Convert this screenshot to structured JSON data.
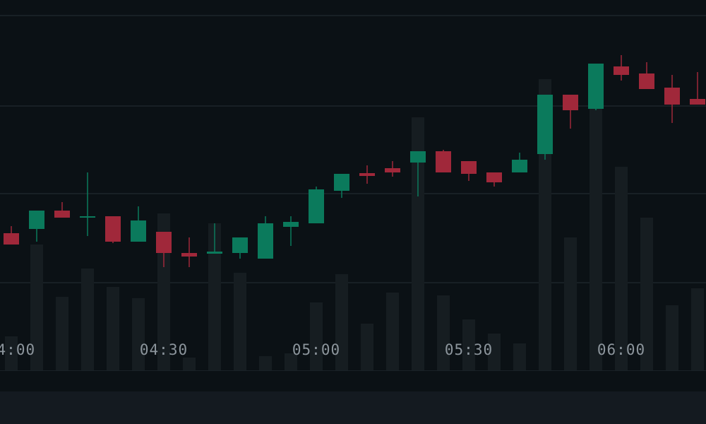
{
  "chart_data": {
    "type": "candlestick",
    "categories": [
      "04:00",
      null,
      null,
      null,
      null,
      null,
      "04:30",
      null,
      null,
      null,
      null,
      null,
      "05:00",
      null,
      null,
      null,
      null,
      null,
      "05:30",
      null,
      null,
      null,
      null,
      null,
      "06:00",
      null,
      null,
      null
    ],
    "open": [
      270,
      276,
      302,
      293,
      294,
      258,
      272,
      242,
      241,
      242,
      234,
      279,
      284,
      330,
      355,
      362,
      370,
      386,
      372,
      356,
      356,
      382,
      466,
      446,
      506,
      496,
      476,
      460
    ],
    "high": [
      280,
      302,
      314,
      356,
      294,
      308,
      272,
      264,
      284,
      264,
      294,
      294,
      336,
      354,
      366,
      372,
      386,
      388,
      372,
      356,
      384,
      466,
      466,
      510,
      522,
      512,
      494,
      498
    ],
    "low": [
      254,
      258,
      292,
      266,
      256,
      258,
      222,
      222,
      241,
      234,
      234,
      252,
      284,
      320,
      340,
      350,
      322,
      356,
      344,
      336,
      356,
      374,
      418,
      444,
      486,
      474,
      426,
      452
    ],
    "close": [
      254,
      302,
      292,
      294,
      258,
      288,
      242,
      237,
      244,
      264,
      284,
      286,
      332,
      354,
      351,
      356,
      386,
      356,
      354,
      342,
      374,
      466,
      444,
      510,
      494,
      474,
      452,
      452
    ],
    "volume": [
      48,
      178,
      104,
      144,
      118,
      102,
      222,
      18,
      208,
      138,
      20,
      24,
      96,
      136,
      66,
      110,
      358,
      106,
      72,
      52,
      38,
      412,
      188,
      374,
      288,
      216,
      92,
      116
    ],
    "up_color": "#0b7a5c",
    "down_color": "#a0283a",
    "volume_color": "#161d21",
    "ylim": [
      0,
      600
    ],
    "volume_ylim": [
      0,
      524
    ]
  }
}
